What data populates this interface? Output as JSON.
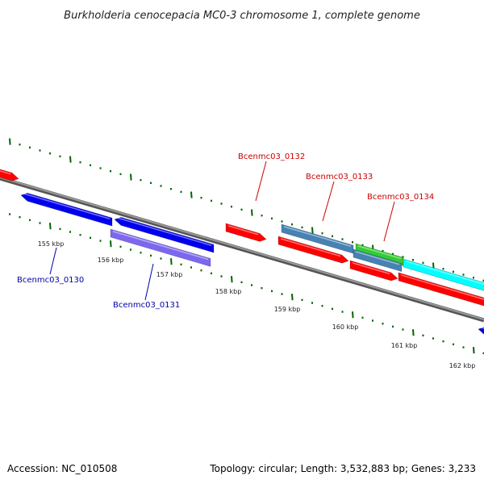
{
  "title": "Burkholderia cenocepacia MC0-3 chromosome 1, complete genome",
  "footer": {
    "accession": "Accession: NC_010508",
    "summary": "Topology: circular; Length: 3,532,883 bp; Genes: 3,233"
  },
  "ticks": [
    "155 kbp",
    "156 kbp",
    "157 kbp",
    "158 kbp",
    "159 kbp",
    "160 kbp",
    "161 kbp",
    "162 kbp"
  ],
  "labels": {
    "bcenmc03_0130": "Bcenmc03_0130",
    "bcenmc03_0131": "Bcenmc03_0131",
    "bcenmc03_0132": "Bcenmc03_0132",
    "bcenmc03_0133": "Bcenmc03_0133",
    "bcenmc03_0134": "Bcenmc03_0134"
  },
  "colors": {
    "reverse_gene": "#0000ee",
    "pseudo_gene": "#7b68ee",
    "forward_gene": "#ff0000",
    "steelblue_feature": "#4682b4",
    "green_feature": "#32cd32",
    "cyan_feature": "#00ffff",
    "tick": "#006400",
    "backbone": "#808080",
    "reverse_label": "#0000aa",
    "forward_label": "#cc0000"
  }
}
